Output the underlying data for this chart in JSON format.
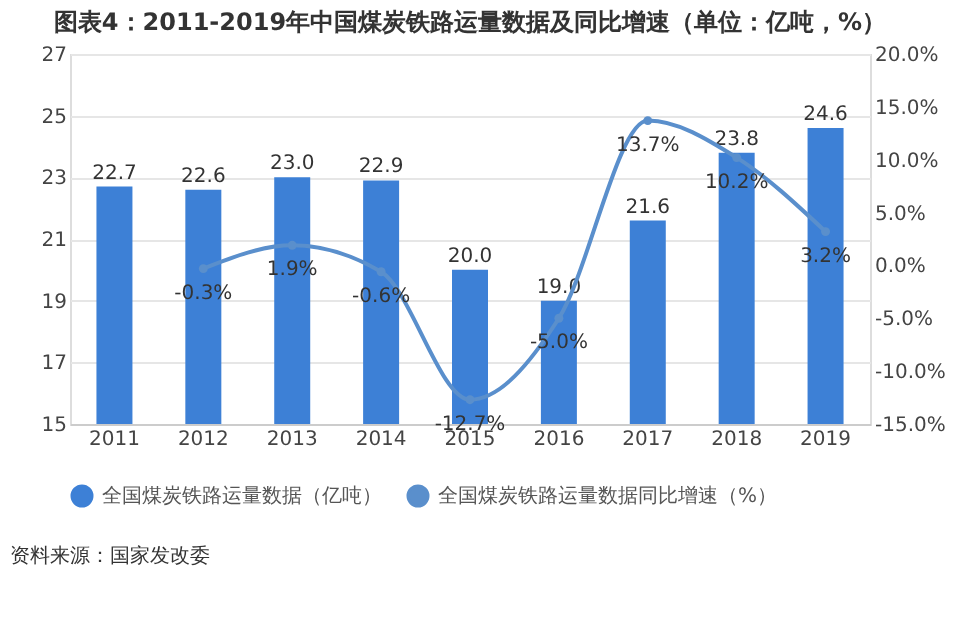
{
  "chart_data": {
    "type": "bar",
    "title": "图表4：2011-2019年中国煤炭铁路运量数据及同比增速（单位：亿吨，%）",
    "categories": [
      "2011",
      "2012",
      "2013",
      "2014",
      "2015",
      "2016",
      "2017",
      "2018",
      "2019"
    ],
    "series": [
      {
        "name": "全国煤炭铁路运量数据（亿吨）",
        "color": "#3d80d6",
        "values": [
          22.7,
          22.6,
          23.0,
          22.9,
          20.0,
          19.0,
          21.6,
          23.8,
          24.6
        ],
        "value_labels": [
          "22.7",
          "22.6",
          "23.0",
          "22.9",
          "20.0",
          "19.0",
          "21.6",
          "23.8",
          "24.6"
        ]
      },
      {
        "name": "全国煤炭铁路运量数据同比增速（%）",
        "type": "line",
        "axis": "y2",
        "color": "#5a8fcc",
        "marker": "circle",
        "values": [
          null,
          -0.3,
          1.9,
          -0.6,
          -12.7,
          -5.0,
          13.7,
          10.2,
          3.2
        ],
        "value_labels": [
          null,
          "-0.3%",
          "1.9%",
          "-0.6%",
          "-12.7%",
          "-5.0%",
          "13.7%",
          "10.2%",
          "3.2%"
        ]
      }
    ],
    "ylim": [
      15,
      27
    ],
    "yticks": [
      15,
      17,
      19,
      21,
      23,
      25,
      27
    ],
    "y2lim": [
      -15,
      20
    ],
    "y2ticks": [
      {
        "value": -15,
        "label": "-15.0%"
      },
      {
        "value": -10,
        "label": "-10.0%"
      },
      {
        "value": -5,
        "label": "-5.0%"
      },
      {
        "value": 0,
        "label": "0.0%"
      },
      {
        "value": 5,
        "label": "5.0%"
      },
      {
        "value": 10,
        "label": "10.0%"
      },
      {
        "value": 15,
        "label": "15.0%"
      },
      {
        "value": 20,
        "label": "20.0%"
      }
    ],
    "grid": "y",
    "legend": "bottom",
    "annotations": [
      "资料来源：国家发改委"
    ]
  }
}
